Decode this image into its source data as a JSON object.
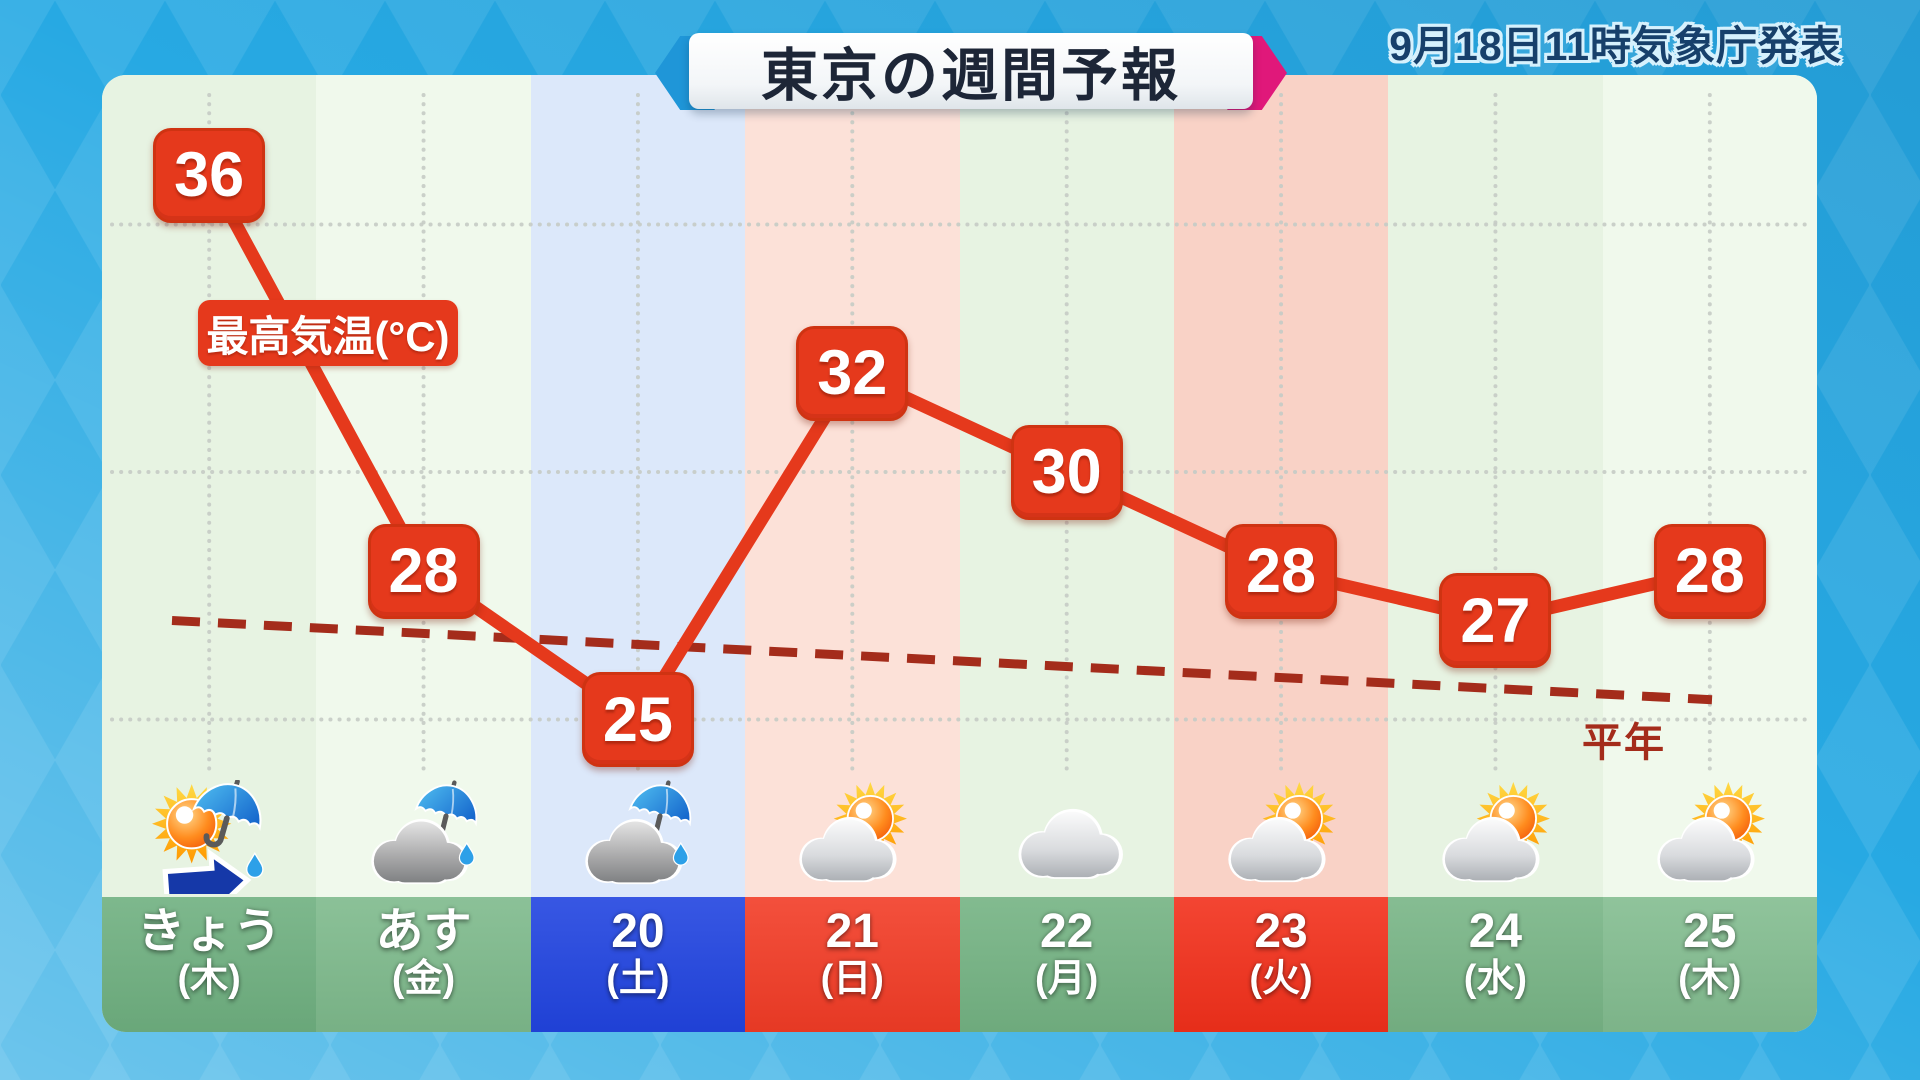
{
  "header": {
    "title": "東京の週間予報",
    "issued": "9月18日11時気象庁発表"
  },
  "chart": {
    "series_label": "最高気温(°C)",
    "normal_label": "平年"
  },
  "days": [
    {
      "label": "きょう",
      "dow": "(木)",
      "temp": 36,
      "icon": "sun-then-rain",
      "tint": "#e7f3e2",
      "band_color": "#6fb080"
    },
    {
      "label": "あす",
      "dow": "(金)",
      "temp": 28,
      "icon": "cloud-rain",
      "tint": "#f0f9ec",
      "band_color": "#7eba8c"
    },
    {
      "label": "20",
      "dow": "(土)",
      "temp": 25,
      "icon": "cloud-rain",
      "tint": "#dce8fa",
      "band_color": "#2144e0"
    },
    {
      "label": "21",
      "dow": "(日)",
      "temp": 32,
      "icon": "cloud-sun",
      "tint": "#fce1d8",
      "band_color": "#f23c26"
    },
    {
      "label": "22",
      "dow": "(月)",
      "temp": 30,
      "icon": "cloud",
      "tint": "#e7f3e2",
      "band_color": "#74b383"
    },
    {
      "label": "23",
      "dow": "(火)",
      "temp": 28,
      "icon": "cloud-sun",
      "tint": "#f9d2c6",
      "band_color": "#f2301b"
    },
    {
      "label": "24",
      "dow": "(水)",
      "temp": 27,
      "icon": "cloud-sun",
      "tint": "#e7f3e2",
      "band_color": "#78b586"
    },
    {
      "label": "25",
      "dow": "(木)",
      "temp": 28,
      "icon": "cloud-sun",
      "tint": "#f0f9ec",
      "band_color": "#83bd90"
    }
  ],
  "chart_data": {
    "type": "line",
    "title": "東京の週間予報",
    "categories": [
      "きょう(木)",
      "あす(金)",
      "20(土)",
      "21(日)",
      "22(月)",
      "23(火)",
      "24(水)",
      "25(木)"
    ],
    "series": [
      {
        "name": "最高気温(°C)",
        "values": [
          36,
          28,
          25,
          32,
          30,
          28,
          27,
          28
        ]
      }
    ],
    "normal_line": {
      "label": "平年",
      "style": "dashed",
      "start": 27.0,
      "end": 25.4
    },
    "ylabel": "最高気温(°C)",
    "ylim": [
      24,
      38
    ],
    "grid": true,
    "gridlines_celsius": [
      25,
      30,
      35
    ],
    "legend_position": "on-chart",
    "weather_icons": [
      "sun-then-rain",
      "cloud-rain",
      "cloud-rain",
      "cloud-sun",
      "cloud",
      "cloud-sun",
      "cloud-sun",
      "cloud-sun"
    ]
  },
  "colors": {
    "accent_red": "#e5391c",
    "normal_line_red": "#a42c1b",
    "grid_gray": "#c6ccc6",
    "banner_blue": "#1f96d8",
    "banner_pink": "#e0187a",
    "saturday_blue": "#2144e0",
    "holiday_red": "#f23c26",
    "weekday_green": "#74b383",
    "background_blue": "#27a9e3"
  }
}
